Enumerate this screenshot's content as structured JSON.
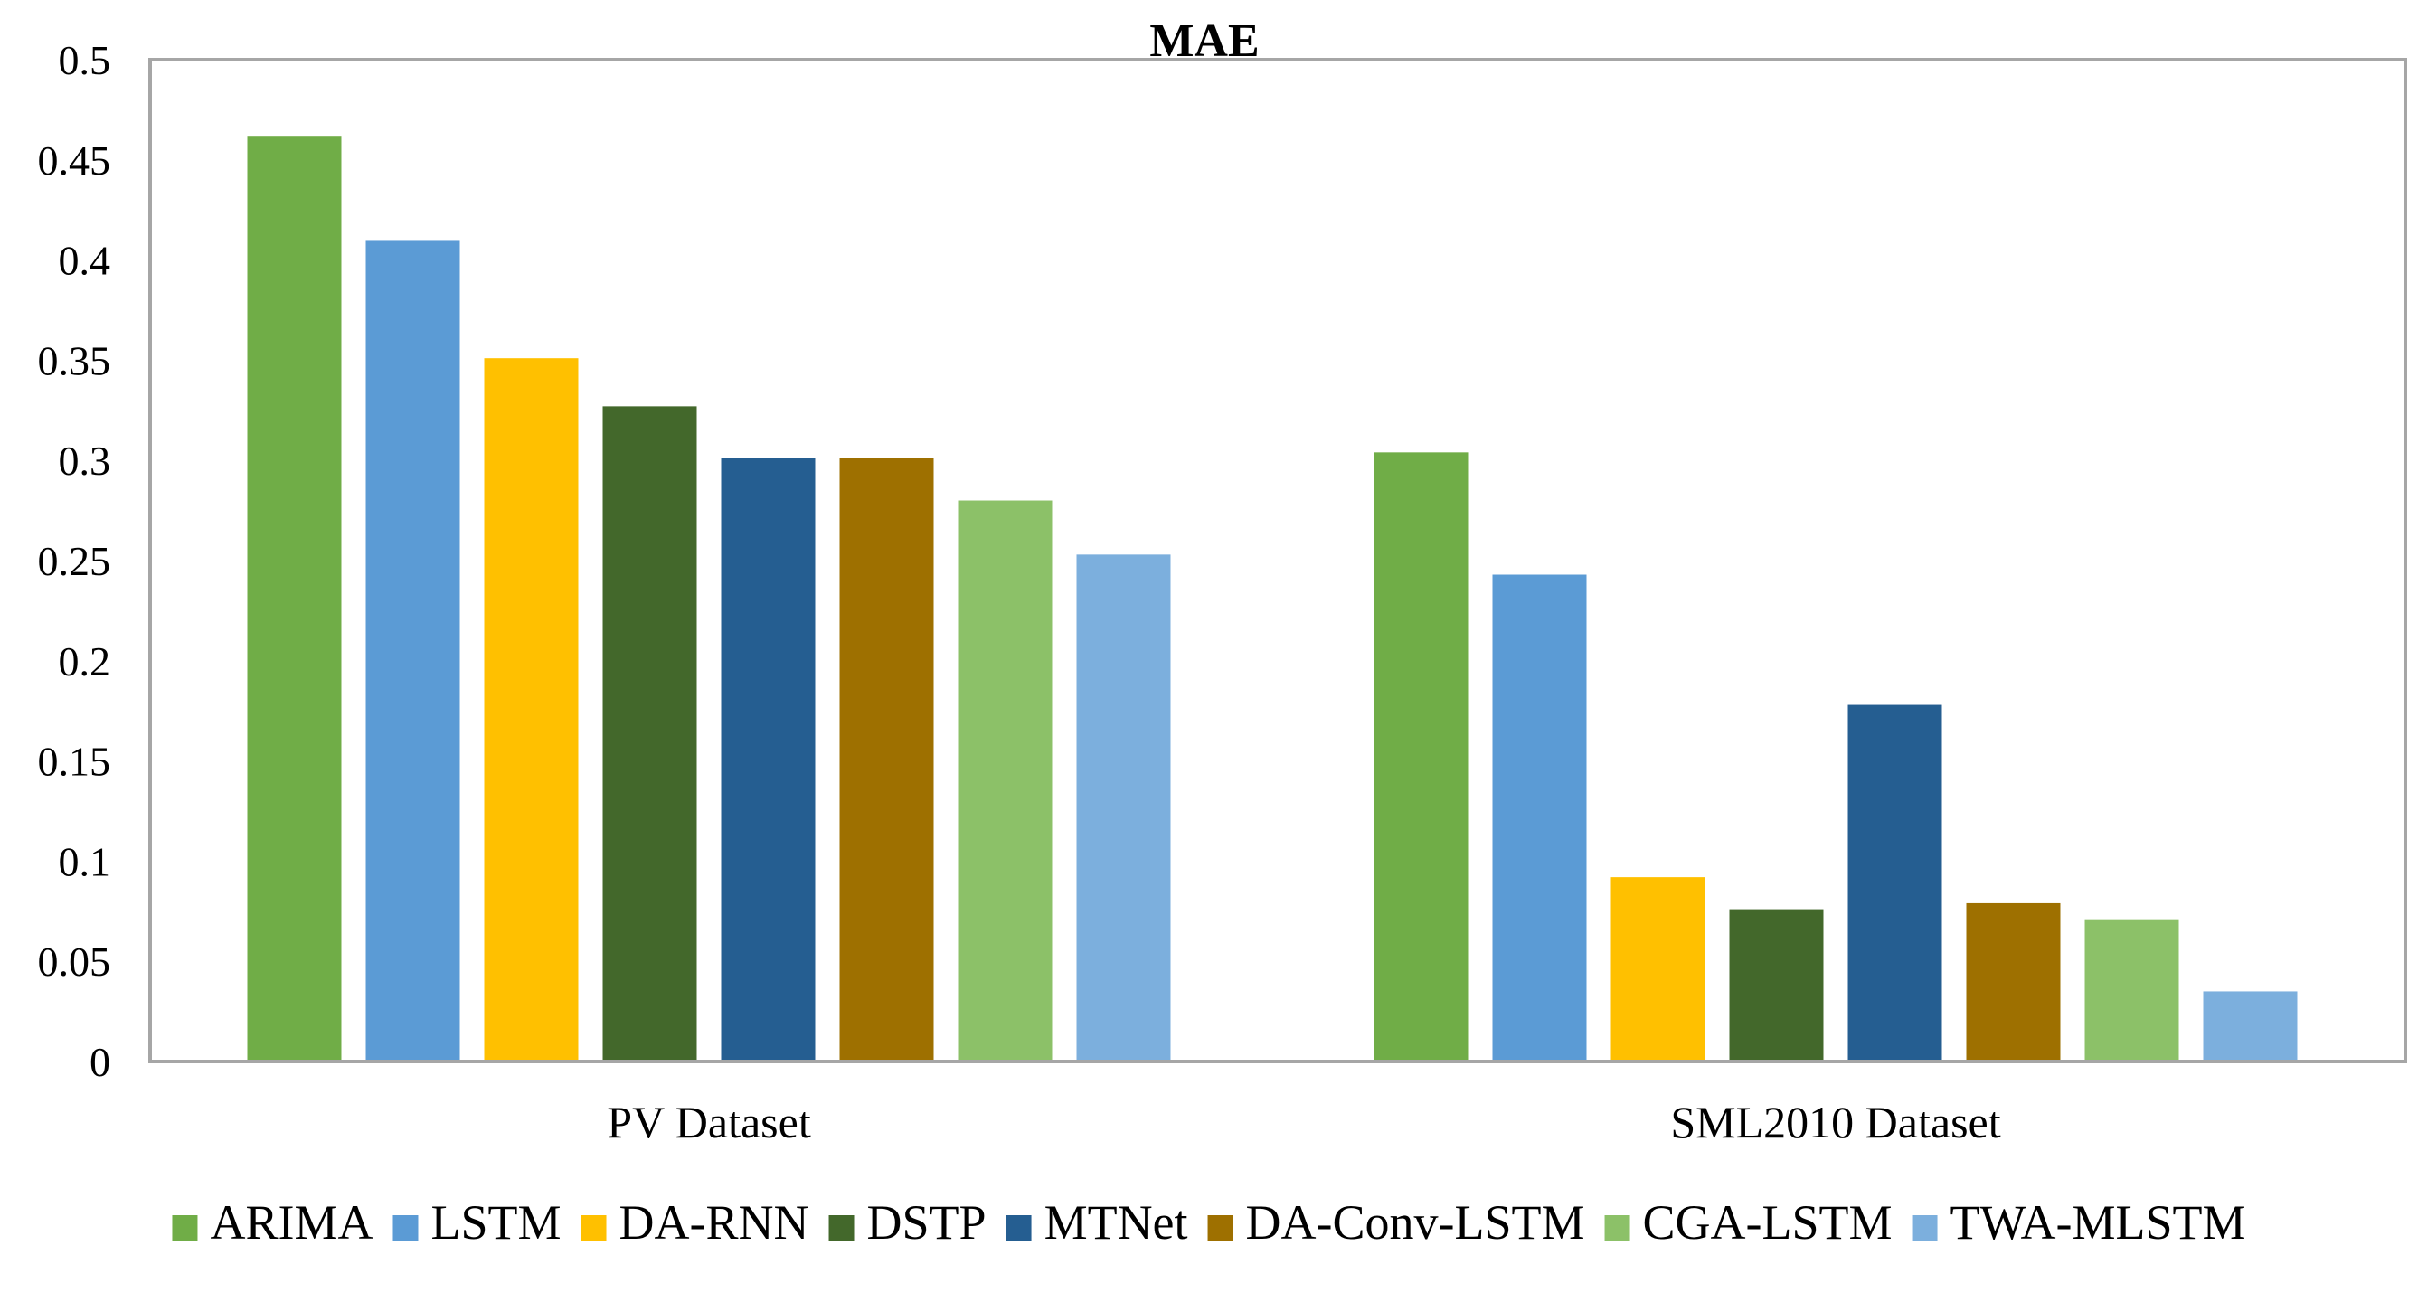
{
  "chart_data": {
    "type": "bar",
    "title": "MAE",
    "xlabel": "",
    "ylabel": "",
    "ylim": [
      0,
      0.5
    ],
    "yticks": [
      "0",
      "0.05",
      "0.1",
      "0.15",
      "0.2",
      "0.25",
      "0.3",
      "0.35",
      "0.4",
      "0.45",
      "0.5"
    ],
    "categories": [
      "PV Dataset",
      "SML2010 Dataset"
    ],
    "grid": false,
    "legend_position": "bottom",
    "series": [
      {
        "name": "ARIMA",
        "color": "#70ad47",
        "values": [
          0.462,
          0.304
        ]
      },
      {
        "name": "LSTM",
        "color": "#5b9bd5",
        "values": [
          0.41,
          0.243
        ]
      },
      {
        "name": "DA-RNN",
        "color": "#ffc000",
        "values": [
          0.351,
          0.092
        ]
      },
      {
        "name": "DSTP",
        "color": "#43682b",
        "values": [
          0.327,
          0.076
        ]
      },
      {
        "name": "MTNet",
        "color": "#255e91",
        "values": [
          0.301,
          0.178
        ]
      },
      {
        "name": "DA-Conv-LSTM",
        "color": "#9e7000",
        "values": [
          0.301,
          0.079
        ]
      },
      {
        "name": "CGA-LSTM",
        "color": "#8cc168",
        "values": [
          0.28,
          0.071
        ]
      },
      {
        "name": "TWA-MLSTM",
        "color": "#7cafdd",
        "values": [
          0.253,
          0.035
        ]
      }
    ]
  }
}
